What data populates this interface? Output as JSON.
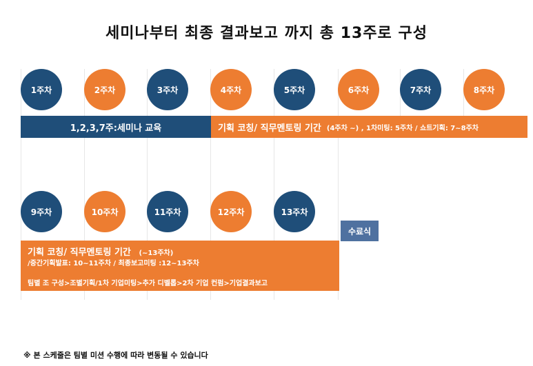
{
  "title": "세미나부터 최종 결과보고 까지 총 13주로 구성",
  "weeks_row1": [
    "1주차",
    "2주차",
    "3주차",
    "4주차",
    "5주차",
    "6주차",
    "7주차",
    "8주차"
  ],
  "weeks_row2": [
    "9주차",
    "10주차",
    "11주차",
    "12주차",
    "13주차"
  ],
  "bar_seminar": "1,2,3,7주:세미나 교육",
  "bar_coaching1": {
    "main": "기획 코칭/ 직무멘토링 기간",
    "sub": "(4주차 ~) , 1차미팅: 5주차 / 쇼트기획: 7~8주차"
  },
  "bar_coaching2": {
    "main": "기획 코칭/ 직무멘토링 기간",
    "main_sub": "(~13주차)",
    "line2": "/중간기획발표: 10~11주차 / 최종보고미팅 :12~13주차",
    "line3": "팀별 조 구성>조별기획/1차 기업미팅>추가 디벨롭>2차 기업 컨펌>기업결과보고"
  },
  "graduation": "수료식",
  "footnote": "※ 본 스케줄은 팀별 미션 수행에 따라 변동될 수 있습니다",
  "colors": {
    "navy": "#1f4e79",
    "orange": "#ed7d31",
    "graduation": "#4f71a0"
  }
}
